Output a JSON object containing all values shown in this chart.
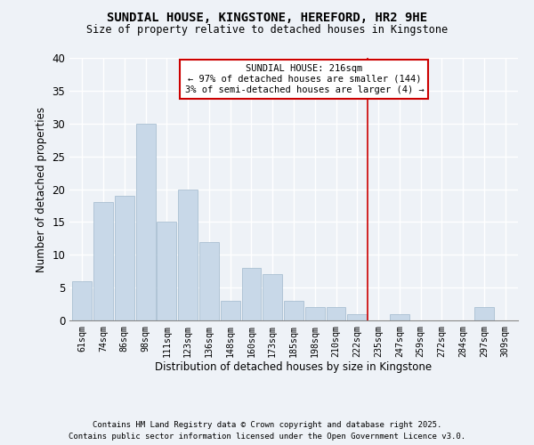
{
  "title": "SUNDIAL HOUSE, KINGSTONE, HEREFORD, HR2 9HE",
  "subtitle": "Size of property relative to detached houses in Kingstone",
  "xlabel": "Distribution of detached houses by size in Kingstone",
  "ylabel": "Number of detached properties",
  "bar_labels": [
    "61sqm",
    "74sqm",
    "86sqm",
    "98sqm",
    "111sqm",
    "123sqm",
    "136sqm",
    "148sqm",
    "160sqm",
    "173sqm",
    "185sqm",
    "198sqm",
    "210sqm",
    "222sqm",
    "235sqm",
    "247sqm",
    "259sqm",
    "272sqm",
    "284sqm",
    "297sqm",
    "309sqm"
  ],
  "bar_values": [
    6,
    18,
    19,
    30,
    15,
    20,
    12,
    3,
    8,
    7,
    3,
    2,
    2,
    1,
    0,
    1,
    0,
    0,
    0,
    2,
    0
  ],
  "bar_color": "#c8d8e8",
  "bar_edge_color": "#a0b8cc",
  "background_color": "#eef2f7",
  "grid_color": "#ffffff",
  "vline_x": 13.5,
  "vline_color": "#cc0000",
  "annotation_text": "SUNDIAL HOUSE: 216sqm\n← 97% of detached houses are smaller (144)\n3% of semi-detached houses are larger (4) →",
  "annotation_box_color": "#ffffff",
  "annotation_box_edge": "#cc0000",
  "footnote1": "Contains HM Land Registry data © Crown copyright and database right 2025.",
  "footnote2": "Contains public sector information licensed under the Open Government Licence v3.0.",
  "ylim": [
    0,
    40
  ],
  "yticks": [
    0,
    5,
    10,
    15,
    20,
    25,
    30,
    35,
    40
  ]
}
